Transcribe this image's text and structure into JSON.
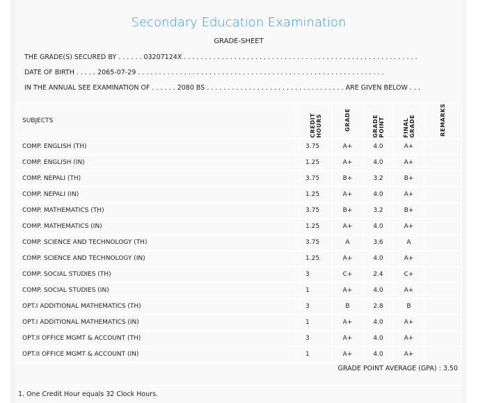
{
  "title": "Secondary Education Examination",
  "subtitle": "GRADE-SHEET",
  "lines": {
    "secured": "THE GRADE(S) SECURED BY . . . . . . 03207124X . . . . . . . . . . . . . . . . . . . . . . . . . . . . . . . . . . . . . . . . . . . . . . . . . . . . . . . .",
    "dob": "DATE OF BIRTH . . . . . 2065-07-29 . . . . . . . . . . . . . . . . . . . . . . . . . . . . . . . . . . . . . . . . . . . . . . . . . . . . . . . . . . .",
    "exam": "IN THE ANNUAL SEE EXAMINATION OF . . . . . . 2080 BS . . . . . . . . . . . . . . . . . . . . . . . . . . . . . . . . . ARE GIVEN BELOW . . ."
  },
  "headers": {
    "subjects": "SUBJECTS",
    "credit": "CREDIT HOURS",
    "grade": "GRADE",
    "gp": "GRADE POINT",
    "final": "FINAL GRADE",
    "remarks": "REMARKS"
  },
  "rows": [
    [
      "COMP. ENGLISH (TH)",
      "3.75",
      "A+",
      "4.0",
      "A+"
    ],
    [
      "COMP. ENGLISH (IN)",
      "1.25",
      "A+",
      "4.0",
      "A+"
    ],
    [
      "COMP. NEPALI (TH)",
      "3.75",
      "B+",
      "3.2",
      "B+"
    ],
    [
      "COMP. NEPALI (IN)",
      "1.25",
      "A+",
      "4.0",
      "A+"
    ],
    [
      "COMP. MATHEMATICS (TH)",
      "3.75",
      "B+",
      "3.2",
      "B+"
    ],
    [
      "COMP. MATHEMATICS (IN)",
      "1.25",
      "A+",
      "4.0",
      "A+"
    ],
    [
      "COMP. SCIENCE AND TECHNOLOGY (TH)",
      "3.75",
      "A",
      "3.6",
      "A"
    ],
    [
      "COMP. SCIENCE AND TECHNOLOGY (IN)",
      "1.25",
      "A+",
      "4.0",
      "A+"
    ],
    [
      "COMP. SOCIAL STUDIES (TH)",
      "3",
      "C+",
      "2.4",
      "C+"
    ],
    [
      "COMP. SOCIAL STUDIES (IN)",
      "1",
      "A+",
      "4.0",
      "A+"
    ],
    [
      "OPT.I ADDITIONAL MATHEMATICS (TH)",
      "3",
      "B",
      "2.8",
      "B"
    ],
    [
      "OPT.I ADDITIONAL MATHEMATICS (IN)",
      "1",
      "A+",
      "4.0",
      "A+"
    ],
    [
      "OPT.II OFFICE MGMT & ACCOUNT (TH)",
      "3",
      "A+",
      "4.0",
      "A+"
    ],
    [
      "OPT.II OFFICE MGMT & ACCOUNT (IN)",
      "1",
      "A+",
      "4.0",
      "A+"
    ]
  ],
  "gpa": "GRADE POINT AVERAGE (GPA) : 3.50",
  "note": "1. One Credit Hour equals 32 Clock Hours."
}
